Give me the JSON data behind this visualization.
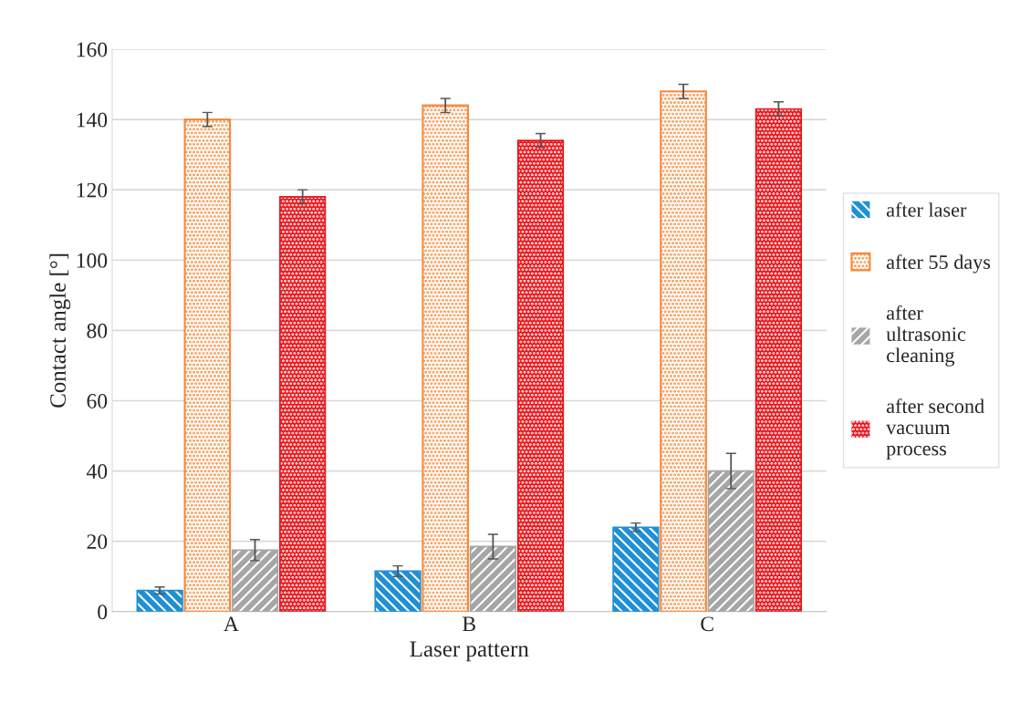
{
  "chart_data": {
    "type": "bar",
    "xlabel": "Laser pattern",
    "ylabel": "Contact angle [°]",
    "categories": [
      "A",
      "B",
      "C"
    ],
    "series": [
      {
        "name": "after laser",
        "color": "#1f8fd6",
        "values": [
          6,
          11.5,
          24
        ],
        "errors": [
          1,
          1.5,
          1.2
        ]
      },
      {
        "name": "after 55 days",
        "color": "#f58a3c",
        "values": [
          140,
          144,
          148
        ],
        "errors": [
          2,
          2,
          2
        ]
      },
      {
        "name": "after ultrasonic cleaning",
        "color": "#a6a6a6",
        "values": [
          17.5,
          18.5,
          40
        ],
        "errors": [
          3,
          3.5,
          5
        ]
      },
      {
        "name": "after second vacuum process",
        "color": "#e8141a",
        "values": [
          118,
          134,
          143
        ],
        "errors": [
          2,
          2,
          2
        ]
      }
    ],
    "ylim": [
      0,
      160
    ],
    "yticks": [
      0,
      20,
      40,
      60,
      80,
      100,
      120,
      140,
      160
    ],
    "grid": "y",
    "legend": "right"
  }
}
